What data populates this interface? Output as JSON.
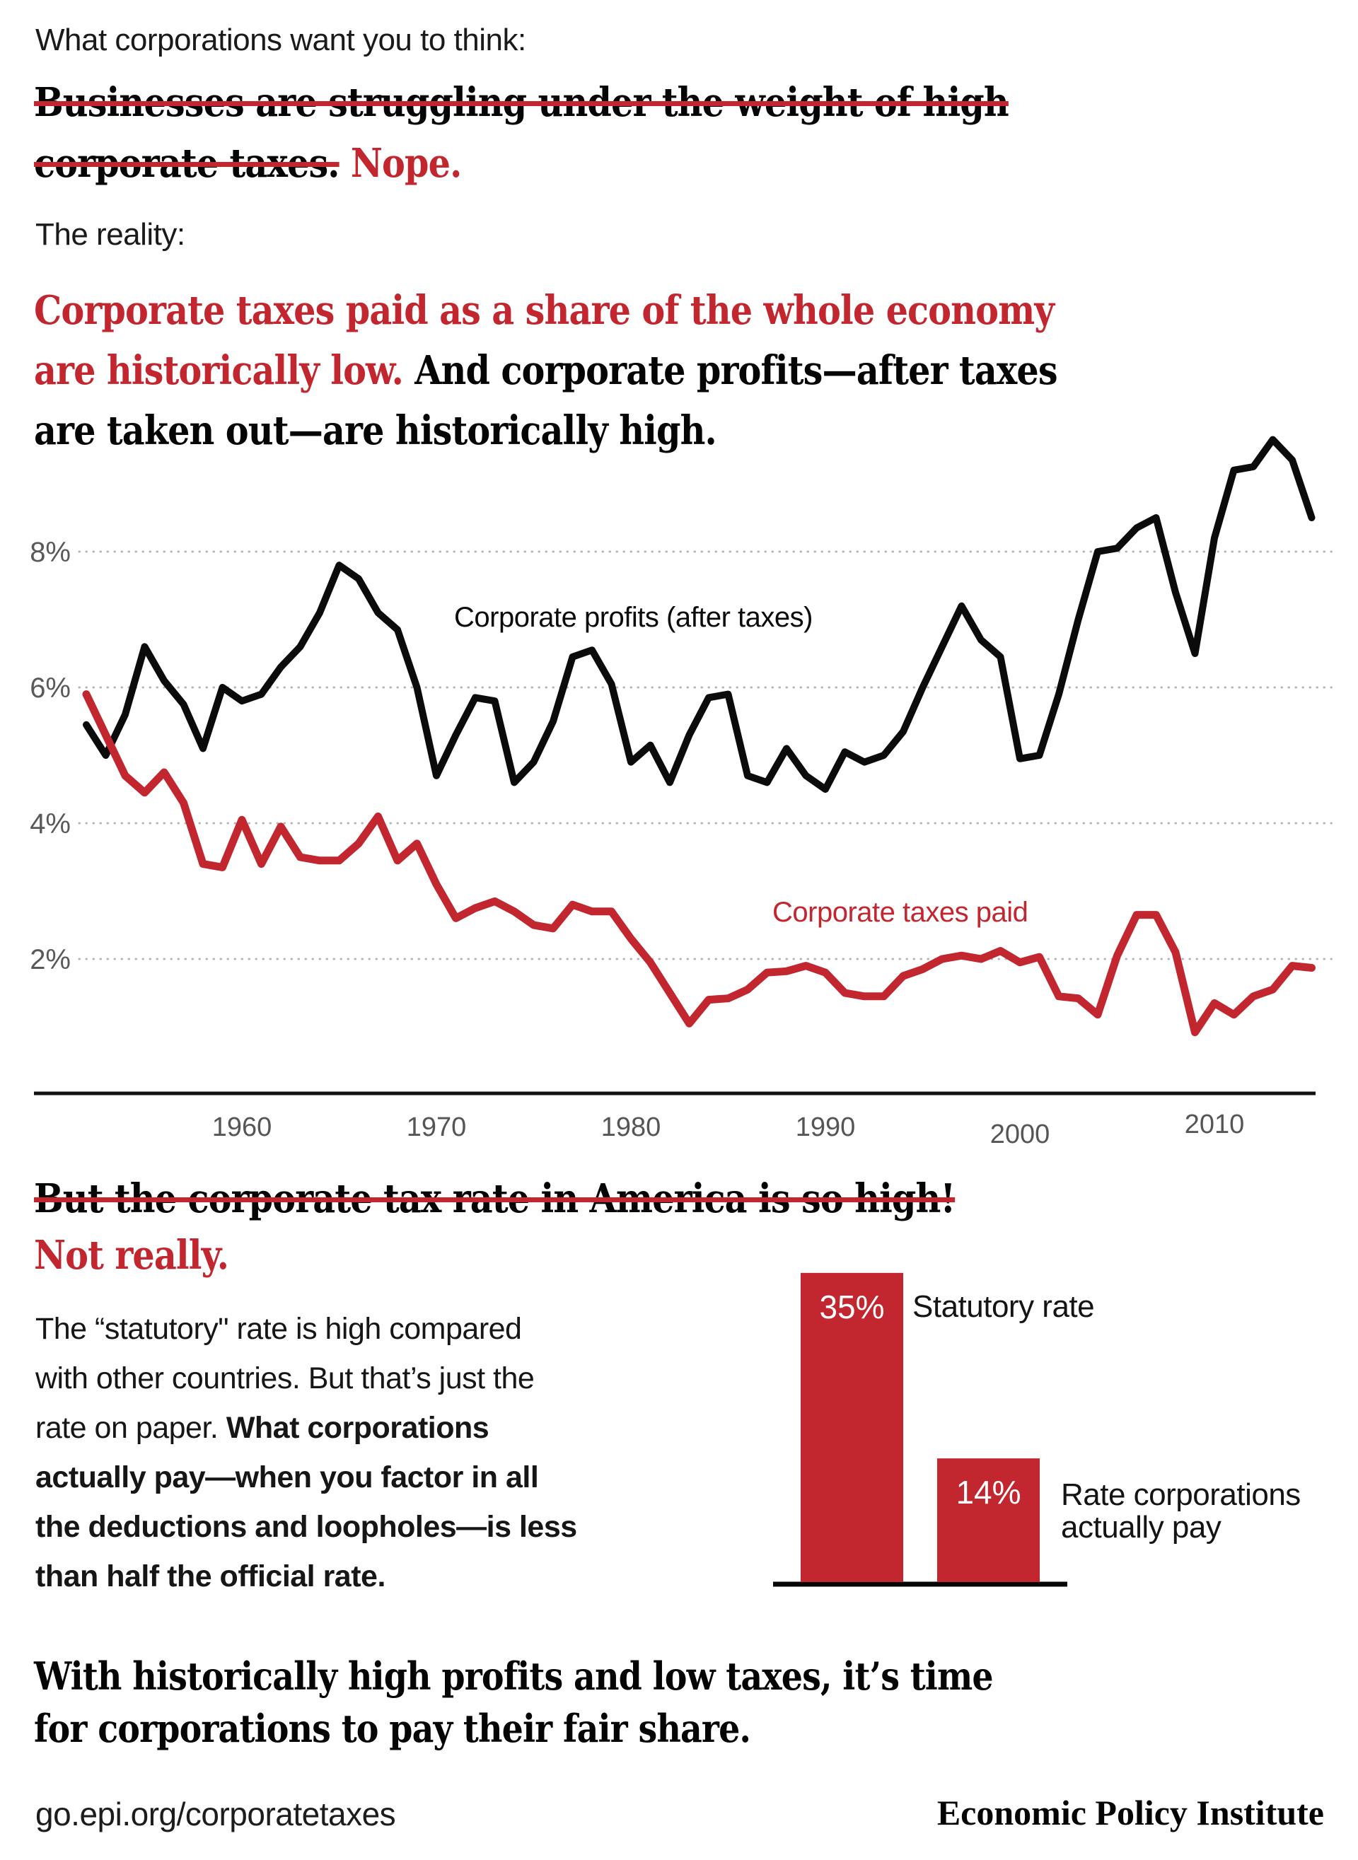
{
  "colors": {
    "accent_red": "#c2262f",
    "line_black": "#0b0b0b",
    "axis_label_gray": "#58595b",
    "tick_label_gray": "#555555",
    "grid_dot_gray": "#b5b5b5",
    "bar_value_white": "#ffffff"
  },
  "sections": {
    "myth": {
      "kicker": "What corporations want you to think:",
      "lines": [
        [
          {
            "t": "Businesses are struggling under the weight of high",
            "c": "strike"
          }
        ],
        [
          {
            "t": "corporate taxes.",
            "c": "strike"
          },
          {
            "t": " Nope.",
            "c": "red"
          }
        ]
      ]
    },
    "reality": {
      "kicker": "The reality:",
      "lines": [
        [
          {
            "t": "Corporate taxes paid as a share of the whole economy",
            "c": "red"
          }
        ],
        [
          {
            "t": "are historically low.",
            "c": "red"
          },
          {
            "t": " And corporate profits—after taxes",
            "c": ""
          }
        ],
        [
          {
            "t": "are taken out—are historically high.",
            "c": ""
          }
        ]
      ]
    },
    "rate_myth": {
      "lines": [
        [
          {
            "t": "But the corporate tax rate in America is so high!",
            "c": "strike"
          }
        ],
        [
          {
            "t": "Not really.",
            "c": "red"
          }
        ]
      ],
      "paragraph_lines": [
        [
          {
            "t": "The “statutory\" rate is high compared",
            "c": ""
          }
        ],
        [
          {
            "t": "with other countries. But that’s just the",
            "c": ""
          }
        ],
        [
          {
            "t": "rate on paper. ",
            "c": ""
          },
          {
            "t": "What corporations",
            "c": "bold"
          }
        ],
        [
          {
            "t": "actually pay—when you factor in all",
            "c": "bold"
          }
        ],
        [
          {
            "t": "the deductions and loopholes—is less",
            "c": "bold"
          }
        ],
        [
          {
            "t": "than half the official rate.",
            "c": "bold"
          }
        ]
      ]
    },
    "conclusion": {
      "lines": [
        [
          {
            "t": "With historically high profits and low taxes, it’s time",
            "c": ""
          }
        ],
        [
          {
            "t": "for corporations to pay their fair share.",
            "c": ""
          }
        ]
      ]
    }
  },
  "chart_data": [
    {
      "type": "line",
      "title": "",
      "xlabel": "",
      "ylabel": "",
      "ylim": [
        0,
        10
      ],
      "grid": "dotted horizontal gridlines at 2%, 4%, 6%, 8%",
      "legend": "inline series labels on chart",
      "x": [
        1952,
        1953,
        1954,
        1955,
        1956,
        1957,
        1958,
        1959,
        1960,
        1961,
        1962,
        1963,
        1964,
        1965,
        1966,
        1967,
        1968,
        1969,
        1970,
        1971,
        1972,
        1973,
        1974,
        1975,
        1976,
        1977,
        1978,
        1979,
        1980,
        1981,
        1982,
        1983,
        1984,
        1985,
        1986,
        1987,
        1988,
        1989,
        1990,
        1991,
        1992,
        1993,
        1994,
        1995,
        1996,
        1997,
        1998,
        1999,
        2000,
        2001,
        2002,
        2003,
        2004,
        2005,
        2006,
        2007,
        2008,
        2009,
        2010,
        2011,
        2012,
        2013,
        2014,
        2015
      ],
      "yticks": [
        {
          "value": 8,
          "label": "8%"
        },
        {
          "value": 6,
          "label": "6%"
        },
        {
          "value": 4,
          "label": "4%"
        },
        {
          "value": 2,
          "label": "2%"
        }
      ],
      "xticks": [
        {
          "value": 1960,
          "label": "1960"
        },
        {
          "value": 1970,
          "label": "1970"
        },
        {
          "value": 1980,
          "label": "1980"
        },
        {
          "value": 1990,
          "label": "1990"
        },
        {
          "value": 2000,
          "label": "2000"
        },
        {
          "value": 2010,
          "label": "2010"
        }
      ],
      "series": [
        {
          "name": "Corporate profits (after taxes)",
          "color_key": "line_black",
          "values": [
            5.45,
            5.0,
            5.6,
            6.6,
            6.1,
            5.75,
            5.1,
            6.0,
            5.8,
            5.9,
            6.3,
            6.6,
            7.1,
            7.8,
            7.6,
            7.1,
            6.85,
            6.0,
            4.7,
            5.3,
            5.85,
            5.8,
            4.6,
            4.9,
            5.5,
            6.45,
            6.55,
            6.05,
            4.9,
            5.15,
            4.6,
            5.3,
            5.85,
            5.9,
            4.7,
            4.6,
            5.1,
            4.7,
            4.5,
            5.05,
            4.9,
            5.0,
            5.35,
            6.0,
            6.6,
            7.2,
            6.7,
            6.45,
            4.95,
            5.0,
            5.9,
            7.0,
            8.0,
            8.05,
            8.35,
            8.5,
            7.4,
            6.5,
            8.2,
            9.2,
            9.25,
            9.65,
            9.35,
            8.5
          ]
        },
        {
          "name": "Corporate taxes paid",
          "color_key": "accent_red",
          "values": [
            5.9,
            5.3,
            4.7,
            4.45,
            4.75,
            4.3,
            3.4,
            3.35,
            4.05,
            3.4,
            3.95,
            3.5,
            3.45,
            3.45,
            3.7,
            4.1,
            3.45,
            3.7,
            3.1,
            2.6,
            2.75,
            2.85,
            2.7,
            2.5,
            2.45,
            2.8,
            2.7,
            2.7,
            2.3,
            1.95,
            1.5,
            1.05,
            1.4,
            1.42,
            1.55,
            1.8,
            1.82,
            1.9,
            1.8,
            1.5,
            1.45,
            1.45,
            1.75,
            1.85,
            2.0,
            2.05,
            2.0,
            2.12,
            1.95,
            2.03,
            1.45,
            1.42,
            1.18,
            2.05,
            2.65,
            2.65,
            2.1,
            0.92,
            1.35,
            1.18,
            1.45,
            1.55,
            1.9,
            1.87
          ]
        }
      ]
    },
    {
      "type": "bar",
      "title": "",
      "categories": [
        "Statutory rate",
        "Rate corporations actually pay"
      ],
      "values": [
        35,
        14
      ],
      "value_labels": [
        "35%",
        "14%"
      ],
      "category_label_lines": [
        [
          "Statutory rate"
        ],
        [
          "Rate corporations",
          "actually pay"
        ]
      ],
      "bar_color_key": "accent_red",
      "ylim": [
        0,
        35
      ]
    }
  ],
  "footer": {
    "url": "go.epi.org/corporatetaxes",
    "brand": "Economic Policy Institute"
  }
}
